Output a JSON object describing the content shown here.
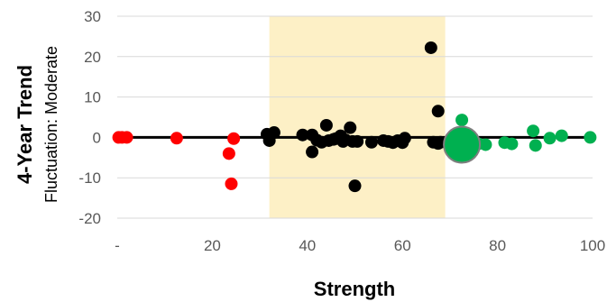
{
  "chart_data": {
    "type": "scatter",
    "xlabel": "Strength",
    "ylabel": "4-Year Trend",
    "ysubtitle": "Fluctuation: Moderate",
    "xlim": [
      0,
      100
    ],
    "ylim": [
      -20,
      30
    ],
    "x_ticks": [
      {
        "value": 0,
        "label": "-"
      },
      {
        "value": 20,
        "label": "20"
      },
      {
        "value": 40,
        "label": "40"
      },
      {
        "value": 60,
        "label": "60"
      },
      {
        "value": 80,
        "label": "80"
      },
      {
        "value": 100,
        "label": "100"
      }
    ],
    "y_ticks": [
      {
        "value": -20,
        "label": "-20"
      },
      {
        "value": -10,
        "label": "-10"
      },
      {
        "value": 0,
        "label": "0"
      },
      {
        "value": 10,
        "label": "10"
      },
      {
        "value": 20,
        "label": "20"
      },
      {
        "value": 30,
        "label": "30"
      }
    ],
    "grid": "horizontal",
    "highlight_band": {
      "x_from": 32,
      "x_to": 69,
      "color": "#fdf0c6"
    },
    "zero_line_color": "#000000",
    "series": [
      {
        "color": "#ff0000",
        "points": [
          {
            "x": 0.3,
            "y": 0
          },
          {
            "x": 1,
            "y": 0
          },
          {
            "x": 2,
            "y": 0
          },
          {
            "x": 12.5,
            "y": -0.2
          },
          {
            "x": 23.5,
            "y": -4
          },
          {
            "x": 24,
            "y": -11.5
          },
          {
            "x": 24.5,
            "y": -0.3
          }
        ]
      },
      {
        "color": "#000000",
        "points": [
          {
            "x": 31.5,
            "y": 0.8
          },
          {
            "x": 32,
            "y": -0.8
          },
          {
            "x": 33,
            "y": 1.2
          },
          {
            "x": 39,
            "y": 0.6
          },
          {
            "x": 41,
            "y": 0.6
          },
          {
            "x": 41,
            "y": -3.6
          },
          {
            "x": 42,
            "y": -0.7
          },
          {
            "x": 43,
            "y": -1.2
          },
          {
            "x": 44,
            "y": 3
          },
          {
            "x": 44.5,
            "y": -0.8
          },
          {
            "x": 45.5,
            "y": -0.5
          },
          {
            "x": 46,
            "y": -0.3
          },
          {
            "x": 47,
            "y": 0.4
          },
          {
            "x": 47.5,
            "y": -1
          },
          {
            "x": 48,
            "y": -0.6
          },
          {
            "x": 49,
            "y": 2.4
          },
          {
            "x": 49.5,
            "y": -1
          },
          {
            "x": 50,
            "y": -12
          },
          {
            "x": 50.5,
            "y": -1
          },
          {
            "x": 53.5,
            "y": -1.2
          },
          {
            "x": 56,
            "y": -0.8
          },
          {
            "x": 57,
            "y": -1
          },
          {
            "x": 58,
            "y": -1.3
          },
          {
            "x": 59,
            "y": -0.8
          },
          {
            "x": 60,
            "y": -1.3
          },
          {
            "x": 60.5,
            "y": -0.2
          },
          {
            "x": 66,
            "y": 22.2
          },
          {
            "x": 66.5,
            "y": -1.2
          },
          {
            "x": 67.5,
            "y": 6.5
          },
          {
            "x": 67.5,
            "y": -1.5
          },
          {
            "x": 68,
            "y": -1.2
          }
        ]
      },
      {
        "color": "#00b050",
        "points": [
          {
            "x": 72.5,
            "y": 4.3
          },
          {
            "x": 75,
            "y": -1.3
          },
          {
            "x": 76,
            "y": -1.6
          },
          {
            "x": 77.5,
            "y": -1.8
          },
          {
            "x": 81.5,
            "y": -1.3
          },
          {
            "x": 83,
            "y": -1.6
          },
          {
            "x": 87.5,
            "y": 1.6
          },
          {
            "x": 88,
            "y": -2
          },
          {
            "x": 91,
            "y": -0.2
          },
          {
            "x": 93.5,
            "y": 0.4
          },
          {
            "x": 99.5,
            "y": 0
          }
        ]
      }
    ],
    "highlight_point": {
      "x": 72.5,
      "y": -1.8,
      "color": "#00b050",
      "stroke": "#7f7f7f"
    }
  }
}
